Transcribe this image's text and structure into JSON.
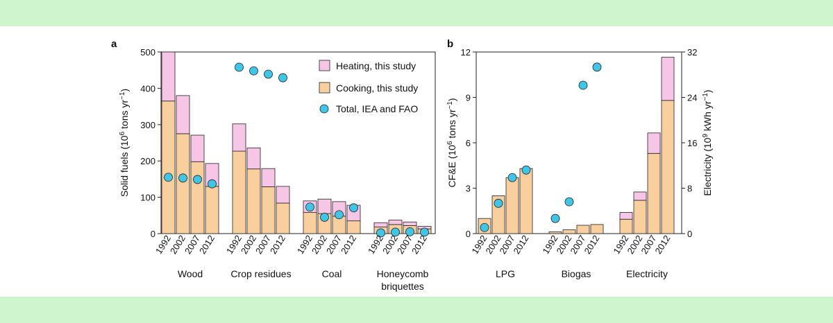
{
  "page": {
    "background": "#ffffff",
    "band_color": "#cff5cf"
  },
  "colors": {
    "heating": "#f7c5e6",
    "cooking": "#f9cf9d",
    "iea": "#3ec6e8",
    "stroke": "#222222"
  },
  "legend": {
    "heating": "Heating, this study",
    "cooking": "Cooking, this study",
    "total": "Total, IEA and FAO"
  },
  "chart_data": [
    {
      "type": "bar",
      "stacked": true,
      "panel": "a",
      "ylabel": "Solid fuels (10^6 tons yr^-1)",
      "ylim": [
        0,
        500
      ],
      "yticks": [
        0,
        100,
        200,
        300,
        400,
        500
      ],
      "groups": [
        {
          "name": "Wood",
          "years": [
            "1992",
            "2002",
            "2007",
            "2012"
          ],
          "cooking": [
            365,
            275,
            198,
            130
          ],
          "heating": [
            135,
            105,
            73,
            63
          ],
          "total": [
            155,
            153,
            149,
            137
          ]
        },
        {
          "name": "Crop residues",
          "years": [
            "1992",
            "2002",
            "2007",
            "2012"
          ],
          "cooking": [
            227,
            178,
            129,
            84
          ],
          "heating": [
            75,
            58,
            50,
            46
          ],
          "total": [
            458,
            448,
            439,
            429
          ]
        },
        {
          "name": "Coal",
          "years": [
            "1992",
            "2002",
            "2007",
            "2012"
          ],
          "cooking": [
            58,
            55,
            48,
            35
          ],
          "heating": [
            32,
            40,
            40,
            43
          ],
          "total": [
            73,
            45,
            52,
            71
          ]
        },
        {
          "name": "Honeycomb\nbriquettes",
          "years": [
            "1992",
            "2002",
            "2007",
            "2012"
          ],
          "cooking": [
            18,
            25,
            22,
            13
          ],
          "heating": [
            12,
            12,
            10,
            7
          ],
          "total": [
            2,
            4,
            5,
            4
          ]
        }
      ]
    },
    {
      "type": "bar",
      "stacked": true,
      "panel": "b",
      "ylabel": "CF&E (10^6 tons yr^-1)",
      "ylim": [
        0,
        12
      ],
      "yticks": [
        0,
        3,
        6,
        9,
        12
      ],
      "y2label": "Electricity (10^9 kWh yr^-1)",
      "y2lim": [
        0,
        32
      ],
      "y2ticks": [
        0,
        8,
        16,
        24,
        32
      ],
      "groups": [
        {
          "name": "LPG",
          "years": [
            "1992",
            "2002",
            "2007",
            "2012"
          ],
          "cooking": [
            1.0,
            2.5,
            3.7,
            4.3
          ],
          "heating": [
            0,
            0,
            0,
            0
          ],
          "total": [
            0.4,
            2.0,
            3.7,
            4.2
          ]
        },
        {
          "name": "Biogas",
          "years": [
            "1992",
            "2002",
            "2007",
            "2012"
          ],
          "cooking": [
            0.12,
            0.25,
            0.55,
            0.6
          ],
          "heating": [
            0,
            0,
            0,
            0
          ],
          "total": [
            1.0,
            2.1,
            9.8,
            11.0
          ]
        },
        {
          "name": "Electricity",
          "years": [
            "1992",
            "2002",
            "2007",
            "2012"
          ],
          "cooking": [
            0.95,
            2.2,
            5.3,
            8.8
          ],
          "heating": [
            0.45,
            0.55,
            1.35,
            2.85
          ],
          "total": [
            null,
            null,
            null,
            null
          ]
        }
      ]
    }
  ]
}
